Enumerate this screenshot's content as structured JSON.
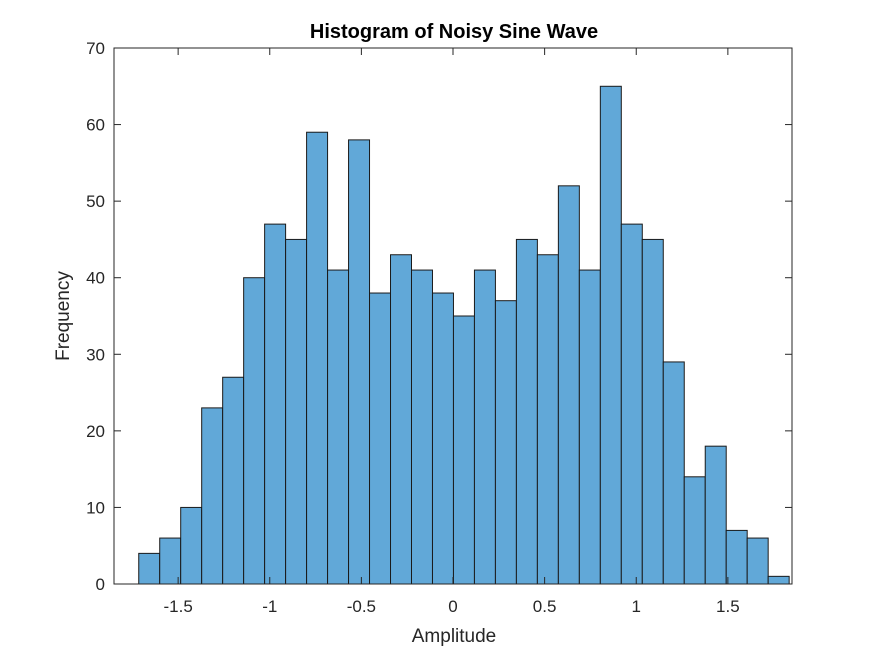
{
  "chart_data": {
    "type": "bar",
    "subtype": "histogram",
    "title": "Histogram of Noisy Sine Wave",
    "xlabel": "Amplitude",
    "ylabel": "Frequency",
    "xlim": [
      -1.85,
      1.85
    ],
    "ylim": [
      0,
      70
    ],
    "xticks": [
      -1.5,
      -1,
      -0.5,
      0,
      0.5,
      1,
      1.5
    ],
    "xtick_labels": [
      "-1.5",
      "-1",
      "-0.5",
      "0",
      "0.5",
      "1",
      "1.5"
    ],
    "yticks": [
      0,
      10,
      20,
      30,
      40,
      50,
      60,
      70
    ],
    "ytick_labels": [
      "0",
      "10",
      "20",
      "30",
      "40",
      "50",
      "60",
      "70"
    ],
    "bin_start": -1.715,
    "bin_width": 0.1145,
    "values": [
      4,
      6,
      10,
      23,
      27,
      40,
      47,
      45,
      59,
      41,
      58,
      38,
      43,
      41,
      38,
      35,
      41,
      37,
      45,
      43,
      52,
      41,
      65,
      47,
      45,
      29,
      14,
      18,
      7,
      6,
      1
    ],
    "grid": false,
    "legend": "none",
    "colors": {
      "bar_fill": "#61a8d8",
      "bar_edge": "#1a1a1a",
      "axis": "#262626"
    }
  }
}
